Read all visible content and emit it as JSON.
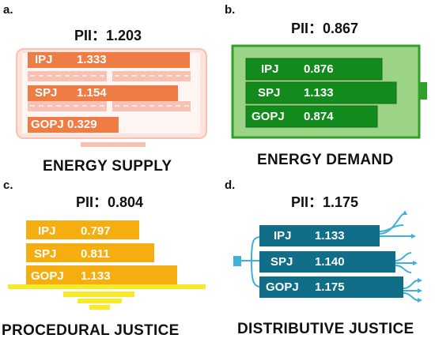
{
  "panels": [
    {
      "letter": "a.",
      "pii": "PII：1.203",
      "caption": "ENERGY SUPPLY",
      "bars": [
        {
          "label": "IPJ",
          "value": "1.333"
        },
        {
          "label": "SPJ",
          "value": "1.154"
        },
        {
          "label": "GOPJ",
          "value": "0.329"
        }
      ]
    },
    {
      "letter": "b.",
      "pii": "PII：0.867",
      "caption": "ENERGY DEMAND",
      "bars": [
        {
          "label": "IPJ",
          "value": "0.876"
        },
        {
          "label": "SPJ",
          "value": "1.133"
        },
        {
          "label": "GOPJ",
          "value": "0.874"
        }
      ]
    },
    {
      "letter": "c.",
      "pii": "PII：0.804",
      "caption": "PROCEDURAL JUSTICE",
      "bars": [
        {
          "label": "IPJ",
          "value": "0.797"
        },
        {
          "label": "SPJ",
          "value": "0.811"
        },
        {
          "label": "GOPJ",
          "value": "1.133"
        }
      ]
    },
    {
      "letter": "d.",
      "pii": "PII：1.175",
      "caption": "DISTRIBUTIVE JUSTICE",
      "bars": [
        {
          "label": "IPJ",
          "value": "1.133"
        },
        {
          "label": "SPJ",
          "value": "1.140"
        },
        {
          "label": "GOPJ",
          "value": "1.175"
        }
      ]
    }
  ],
  "colors": {
    "supply_bar": "#ee7c44",
    "supply_frame": "#f7c2b4",
    "demand_bar": "#138a1c",
    "demand_frame": "#9bd487",
    "procedural_bar": "#f5ad0f",
    "procedural_base": "#f7ea2b",
    "distributive_bar": "#106e89",
    "distributive_line": "#3fb0d8"
  }
}
